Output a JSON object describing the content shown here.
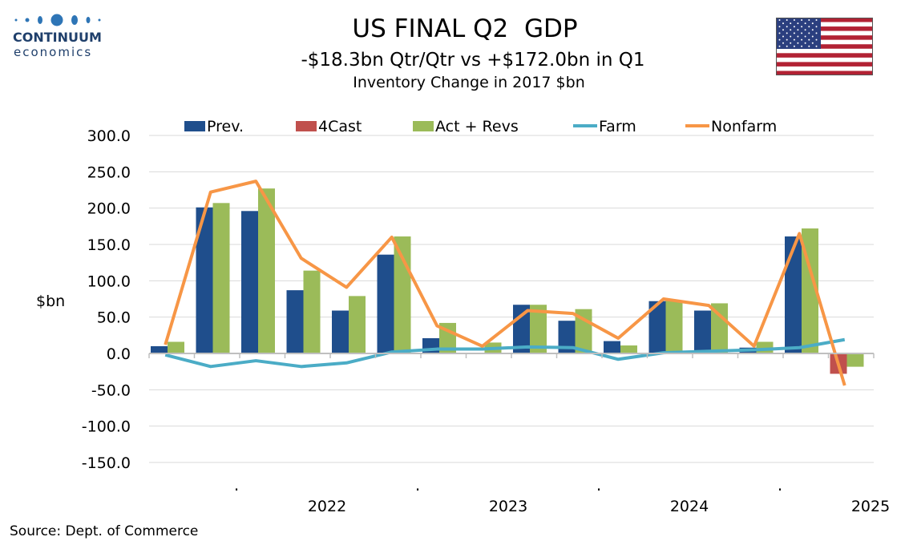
{
  "header": {
    "logo_name": "CONTINUUM",
    "logo_sub": "economics",
    "title": "US FINAL Q2  GDP",
    "subtitle": "-$18.3bn Qtr/Qtr vs +$172.0bn in Q1",
    "subtitle2": "Inventory Change in 2017 $bn",
    "flag_icon": "us-flag-icon"
  },
  "footer": {
    "source": "Source: Dept. of Commerce"
  },
  "colors": {
    "prev": "#1f4e8c",
    "fcast": "#c0504d",
    "act": "#9bbb59",
    "farm": "#4bacc6",
    "nonfarm": "#f79646",
    "grid": "#d9d9d9"
  },
  "chart_data": {
    "type": "bar",
    "ylabel": "$bn",
    "ylim": [
      -150,
      300
    ],
    "yticks": [
      "300.0",
      "250.0",
      "200.0",
      "150.0",
      "100.0",
      "50.0",
      "0.0",
      "-50.0",
      "-100.0",
      "-150.0"
    ],
    "grid": true,
    "legend_position": "top",
    "x_labels": [
      {
        "label": ".",
        "after_index": 2
      },
      {
        "label": "2022",
        "after_index": 4
      },
      {
        "label": ".",
        "after_index": 6
      },
      {
        "label": "2023",
        "after_index": 8
      },
      {
        "label": ".",
        "after_index": 10
      },
      {
        "label": "2024",
        "after_index": 12
      },
      {
        "label": ".",
        "after_index": 14
      },
      {
        "label": "2025",
        "after_index": 16
      }
    ],
    "n_categories": 16,
    "series": [
      {
        "name": "Prev.",
        "kind": "bar",
        "values": [
          10,
          201,
          196,
          87,
          59,
          136,
          21,
          0,
          67,
          45,
          17,
          72,
          59,
          8,
          161,
          null
        ]
      },
      {
        "name": "4Cast",
        "kind": "bar",
        "values": [
          null,
          null,
          null,
          null,
          null,
          null,
          null,
          null,
          null,
          null,
          null,
          null,
          null,
          null,
          null,
          -28
        ]
      },
      {
        "name": "Act + Revs",
        "kind": "bar",
        "values": [
          16,
          207,
          227,
          114,
          79,
          161,
          42,
          15,
          67,
          61,
          11,
          73,
          69,
          16,
          172,
          -18.3
        ]
      },
      {
        "name": "Farm",
        "kind": "line",
        "values": [
          -2,
          -18,
          -10,
          -18,
          -13,
          2,
          6,
          6,
          9,
          8,
          -8,
          1,
          3,
          5,
          8,
          19
        ]
      },
      {
        "name": "Nonfarm",
        "kind": "line",
        "values": [
          12,
          222,
          237,
          131,
          91,
          160,
          38,
          10,
          59,
          55,
          21,
          75,
          66,
          10,
          165,
          -44
        ]
      }
    ]
  }
}
